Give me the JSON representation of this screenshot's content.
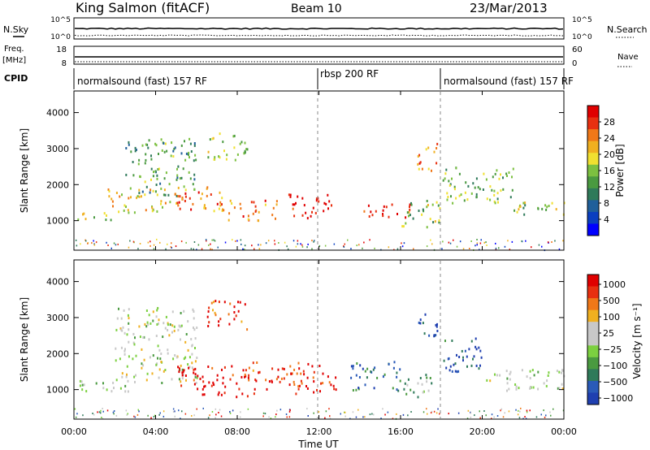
{
  "header": {
    "station": "King Salmon (fitACF)",
    "beam": "Beam 10",
    "date": "23/Mar/2013"
  },
  "top_panels": {
    "nsky_label": "N.Sky",
    "nsearch_label": "N.Search",
    "count_ticks": [
      "10^5",
      "10^0"
    ],
    "freq_label_1": "Freq.",
    "freq_label_2": "[MHz]",
    "freq_ticks": [
      "18",
      "8"
    ],
    "nave_label": "Nave",
    "nave_ticks": [
      "60",
      "0"
    ],
    "cpid_label": "CPID",
    "cpid_segments": [
      {
        "label": "normalsound (fast) 157 RF",
        "start": 0,
        "end": 12
      },
      {
        "label": "rbsp 200 RF",
        "start": 12,
        "end": 18
      },
      {
        "label": "normalsound (fast) 157 RF",
        "start": 18,
        "end": 24
      }
    ]
  },
  "chart_data": [
    {
      "type": "heatmap",
      "name": "power-panel",
      "ylabel": "Slant Range [km]",
      "xlabel": "Time UT",
      "xlim": [
        0,
        24
      ],
      "ylim": [
        180,
        4600
      ],
      "x_ticks": [
        "00:00",
        "04:00",
        "08:00",
        "12:00",
        "16:00",
        "20:00",
        "00:00"
      ],
      "y_ticks": [
        1000,
        2000,
        3000,
        4000
      ],
      "colorbar": {
        "label": "Power [dB]",
        "range": [
          0,
          32
        ],
        "ticks": [
          4,
          8,
          12,
          16,
          20,
          24,
          28
        ],
        "colors": [
          "#0000ff",
          "#0a3fc0",
          "#1f5f9a",
          "#2f7a5a",
          "#4a9a40",
          "#7cc040",
          "#f0e030",
          "#f0b020",
          "#f07818",
          "#e83010",
          "#e00000"
        ]
      },
      "scatter_regions": [
        {
          "t": [
            0,
            2
          ],
          "r": [
            1000,
            1250
          ],
          "level": 0.55
        },
        {
          "t": [
            1.5,
            5
          ],
          "r": [
            1250,
            1900
          ],
          "level": 0.65
        },
        {
          "t": [
            2.5,
            6
          ],
          "r": [
            1700,
            3300
          ],
          "level": 0.4
        },
        {
          "t": [
            5,
            7.5
          ],
          "r": [
            1300,
            2000
          ],
          "level": 0.8
        },
        {
          "t": [
            6.5,
            8.5
          ],
          "r": [
            2700,
            3500
          ],
          "level": 0.5
        },
        {
          "t": [
            7,
            10
          ],
          "r": [
            1000,
            1600
          ],
          "level": 0.75
        },
        {
          "t": [
            10.5,
            12.8
          ],
          "r": [
            1100,
            1800
          ],
          "level": 0.95
        },
        {
          "t": [
            14,
            16.5
          ],
          "r": [
            1100,
            1500
          ],
          "level": 0.9
        },
        {
          "t": [
            16.8,
            17.8
          ],
          "r": [
            2400,
            3200
          ],
          "level": 0.75
        },
        {
          "t": [
            16,
            18
          ],
          "r": [
            850,
            1600
          ],
          "level": 0.5
        },
        {
          "t": [
            18,
            21.5
          ],
          "r": [
            1500,
            2500
          ],
          "level": 0.45
        },
        {
          "t": [
            21,
            24
          ],
          "r": [
            1200,
            1600
          ],
          "level": 0.5
        }
      ]
    },
    {
      "type": "heatmap",
      "name": "velocity-panel",
      "ylabel": "Slant Range [km]",
      "xlabel": "Time UT",
      "xlim": [
        0,
        24
      ],
      "ylim": [
        180,
        4600
      ],
      "x_ticks": [
        "00:00",
        "04:00",
        "08:00",
        "12:00",
        "16:00",
        "20:00",
        "00:00"
      ],
      "y_ticks": [
        1000,
        2000,
        3000,
        4000
      ],
      "colorbar": {
        "label": "Velocity [m s⁻¹]",
        "ticks": [
          "1000",
          "500",
          "100",
          "25",
          "−25",
          "−100",
          "−500",
          "−1000"
        ],
        "colors": [
          "#1f3fb0",
          "#2a5ab8",
          "#2f7a5a",
          "#4a9a40",
          "#7cd040",
          "#c8c8c8",
          "#c8c8c8",
          "#f0b020",
          "#f07818",
          "#e83010",
          "#e00000"
        ]
      },
      "scatter_regions": [
        {
          "t": [
            0,
            3
          ],
          "r": [
            950,
            1300
          ],
          "level": 0.5
        },
        {
          "t": [
            2,
            6
          ],
          "r": [
            1200,
            3300
          ],
          "level": 0.5
        },
        {
          "t": [
            5,
            8.5
          ],
          "r": [
            800,
            1700
          ],
          "level": 0.95
        },
        {
          "t": [
            6.5,
            8.5
          ],
          "r": [
            2700,
            3500
          ],
          "level": 0.85
        },
        {
          "t": [
            8.5,
            12.8
          ],
          "r": [
            900,
            1800
          ],
          "level": 0.9
        },
        {
          "t": [
            13.5,
            16
          ],
          "r": [
            1000,
            1800
          ],
          "level": 0.2
        },
        {
          "t": [
            16,
            17.5
          ],
          "r": [
            800,
            1500
          ],
          "level": 0.35
        },
        {
          "t": [
            16.8,
            17.8
          ],
          "r": [
            2400,
            3200
          ],
          "level": 0.1
        },
        {
          "t": [
            18,
            20
          ],
          "r": [
            1500,
            2500
          ],
          "level": 0.1
        },
        {
          "t": [
            20,
            24
          ],
          "r": [
            1000,
            1600
          ],
          "level": 0.5
        }
      ]
    }
  ]
}
